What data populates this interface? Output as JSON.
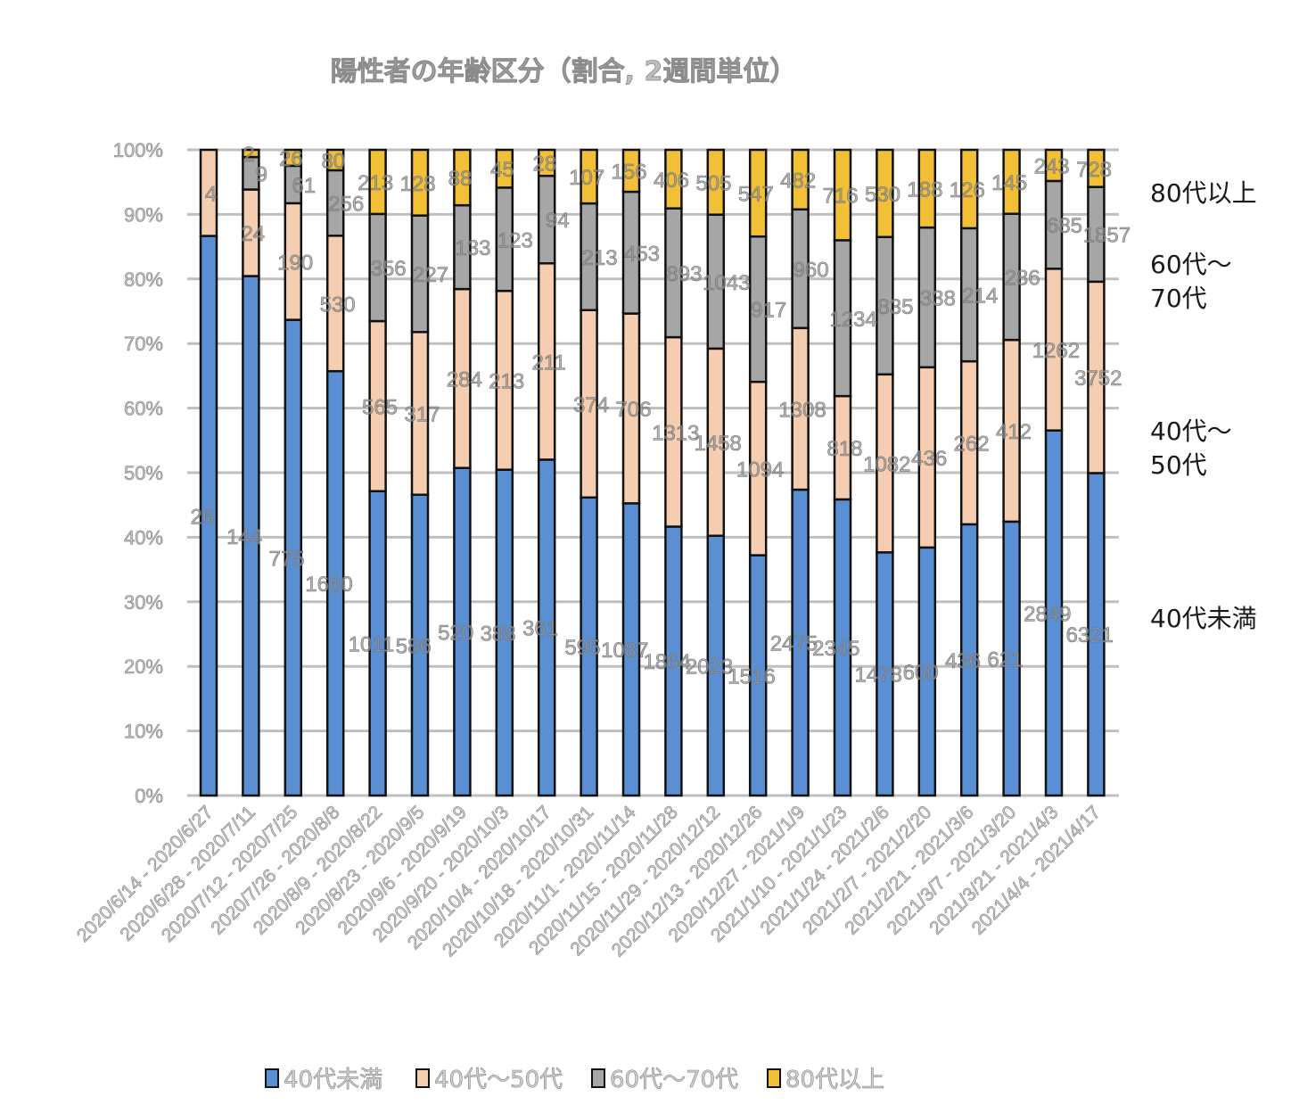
{
  "chart_data": {
    "type": "bar",
    "stacked": "percent",
    "title": "陽性者の年齢区分（割合, 2週間単位）",
    "xlabel": "",
    "ylabel": "",
    "ylim": [
      0,
      100
    ],
    "yticks": [
      "0%",
      "10%",
      "20%",
      "30%",
      "40%",
      "50%",
      "60%",
      "70%",
      "80%",
      "90%",
      "100%"
    ],
    "grid": true,
    "legend_position": "bottom",
    "categories": [
      "2020/6/14 - 2020/6/27",
      "2020/6/28 - 2020/7/11",
      "2020/7/12 - 2020/7/25",
      "2020/7/26 - 2020/8/8",
      "2020/8/9 - 2020/8/22",
      "2020/8/23 - 2020/9/5",
      "2020/9/6 - 2020/9/19",
      "2020/9/20 - 2020/10/3",
      "2020/10/4 - 2020/10/17",
      "2020/10/18 - 2020/10/31",
      "2020/11/1 - 2020/11/14",
      "2020/11/15 - 2020/11/28",
      "2020/11/29 - 2020/12/12",
      "2020/12/13 - 2020/12/26",
      "2020/12/27 - 2021/1/9",
      "2021/1/10 - 2021/1/23",
      "2021/1/24 - 2021/2/6",
      "2021/2/7 - 2021/2/20",
      "2021/2/21 - 2021/3/6",
      "2021/3/7 - 2021/3/20",
      "2021/3/21 - 2021/4/3",
      "2021/4/4 - 2021/4/17"
    ],
    "series": [
      {
        "name": "40代未満",
        "color": "#5b8fd4",
        "values": [
          26,
          144,
          775,
          1660,
          1011,
          586,
          520,
          388,
          361,
          595,
          1087,
          1864,
          2023,
          1516,
          2475,
          2345,
          1478,
          600,
          436,
          621,
          2849,
          6321
        ]
      },
      {
        "name": "40代～50代",
        "color": "#f5cdb0",
        "values": [
          4,
          24,
          190,
          530,
          565,
          317,
          284,
          213,
          211,
          374,
          706,
          1313,
          1458,
          1094,
          1308,
          818,
          1082,
          436,
          262,
          412,
          1262,
          3752
        ]
      },
      {
        "name": "60代～70代",
        "color": "#a6a6a6",
        "values": [
          0,
          9,
          61,
          256,
          356,
          227,
          133,
          123,
          94,
          213,
          453,
          893,
          1043,
          917,
          960,
          1234,
          835,
          338,
          214,
          286,
          685,
          1857
        ]
      },
      {
        "name": "80代以上",
        "color": "#f2c037",
        "values": [
          0,
          2,
          26,
          80,
          213,
          128,
          88,
          45,
          28,
          107,
          156,
          406,
          505,
          547,
          482,
          716,
          530,
          188,
          126,
          145,
          243,
          728
        ]
      }
    ],
    "annotations": [
      "80代以上",
      "60代～\n70代",
      "40代～\n50代",
      "40代未満"
    ]
  }
}
